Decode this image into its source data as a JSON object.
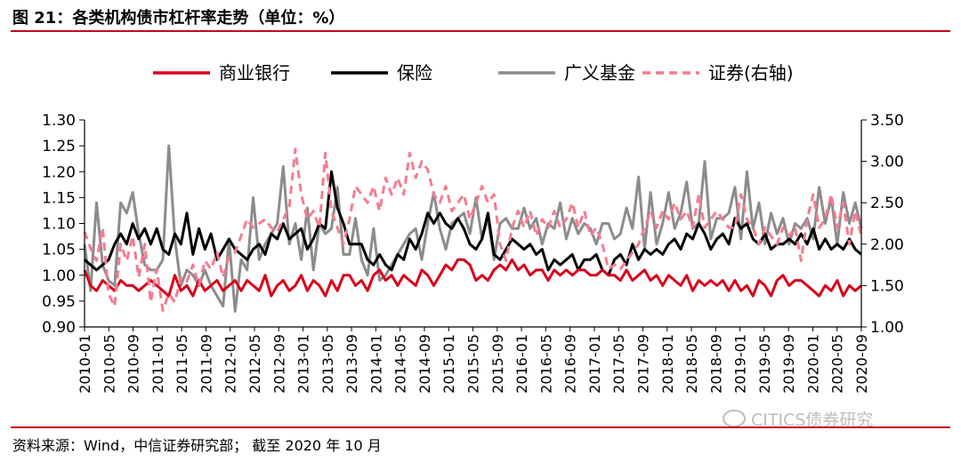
{
  "figure": {
    "title": "图 21：各类机构债市杠杆率走势（单位：%）",
    "source": "资料来源：Wind，中信证券研究部； 截至 2020 年 10 月",
    "watermark": "CITICS债券研究"
  },
  "chart_data": {
    "type": "line",
    "legend_position": "top",
    "grid": false,
    "y_left": {
      "ylim": [
        0.9,
        1.3
      ],
      "ticks": [
        "0.90",
        "0.95",
        "1.00",
        "1.05",
        "1.10",
        "1.15",
        "1.20",
        "1.25",
        "1.30"
      ]
    },
    "y_right": {
      "ylim": [
        1.0,
        3.5
      ],
      "ticks": [
        "1.00",
        "1.50",
        "2.00",
        "2.50",
        "3.00",
        "3.50"
      ]
    },
    "x_tick_labels": [
      "2010-01",
      "2010-05",
      "2010-09",
      "2011-01",
      "2011-05",
      "2011-09",
      "2012-01",
      "2012-05",
      "2012-09",
      "2013-01",
      "2013-05",
      "2013-09",
      "2014-01",
      "2014-05",
      "2014-09",
      "2015-01",
      "2015-05",
      "2015-09",
      "2016-01",
      "2016-05",
      "2016-09",
      "2017-01",
      "2017-05",
      "2017-09",
      "2018-01",
      "2018-05",
      "2018-09",
      "2019-01",
      "2019-05",
      "2019-09",
      "2020-01",
      "2020-05",
      "2020-09"
    ],
    "n_points": 130,
    "series": [
      {
        "name": "商业银行",
        "axis": "left",
        "color": "#d9001b",
        "dash": "solid",
        "values": [
          1.01,
          0.98,
          0.97,
          0.99,
          0.98,
          0.97,
          0.99,
          0.98,
          0.98,
          0.97,
          0.98,
          0.99,
          0.98,
          0.97,
          0.96,
          1.0,
          0.97,
          0.98,
          0.96,
          0.99,
          0.97,
          0.98,
          0.99,
          0.97,
          0.98,
          0.99,
          0.97,
          0.99,
          0.98,
          0.97,
          1.0,
          0.96,
          0.98,
          0.99,
          0.97,
          0.98,
          1.0,
          0.97,
          0.99,
          0.98,
          0.96,
          0.99,
          0.97,
          1.0,
          1.0,
          0.98,
          0.99,
          0.97,
          1.0,
          1.01,
          0.99,
          1.0,
          0.98,
          1.0,
          0.99,
          0.98,
          1.01,
          1.0,
          0.98,
          1.0,
          1.02,
          1.01,
          1.03,
          1.03,
          1.02,
          0.99,
          1.0,
          0.99,
          1.01,
          1.02,
          1.01,
          1.03,
          1.01,
          1.02,
          1.0,
          1.01,
          1.01,
          0.99,
          1.01,
          1.0,
          1.01,
          1.0,
          1.01,
          1.01,
          1.0,
          1.0,
          1.01,
          1.0,
          1.0,
          0.99,
          1.01,
          0.99,
          1.0,
          1.01,
          0.99,
          1.0,
          0.98,
          1.0,
          0.99,
          0.98,
          1.0,
          0.97,
          0.99,
          0.98,
          0.99,
          0.98,
          0.99,
          0.97,
          0.99,
          0.97,
          0.98,
          0.96,
          0.99,
          0.98,
          0.96,
          0.99,
          1.0,
          0.98,
          0.99,
          0.99,
          0.98,
          0.97,
          0.96,
          0.98,
          0.97,
          0.99,
          0.96,
          0.98,
          0.97,
          0.98
        ]
      },
      {
        "name": "保险",
        "axis": "left",
        "color": "#000000",
        "dash": "solid",
        "values": [
          1.03,
          1.02,
          1.01,
          1.02,
          1.03,
          1.06,
          1.08,
          1.06,
          1.1,
          1.07,
          1.09,
          1.06,
          1.09,
          1.05,
          1.04,
          1.08,
          1.06,
          1.12,
          1.04,
          1.09,
          1.05,
          1.08,
          1.03,
          1.05,
          1.07,
          1.05,
          1.04,
          1.03,
          1.05,
          1.06,
          1.04,
          1.08,
          1.07,
          1.1,
          1.07,
          1.08,
          1.09,
          1.05,
          1.07,
          1.1,
          1.09,
          1.2,
          1.13,
          1.1,
          1.06,
          1.06,
          1.06,
          1.03,
          1.02,
          1.04,
          1.02,
          1.01,
          1.04,
          1.03,
          1.07,
          1.05,
          1.08,
          1.12,
          1.1,
          1.12,
          1.1,
          1.09,
          1.11,
          1.09,
          1.06,
          1.05,
          1.07,
          1.12,
          1.04,
          1.03,
          1.05,
          1.07,
          1.06,
          1.05,
          1.06,
          1.04,
          1.05,
          1.01,
          1.03,
          1.02,
          1.03,
          1.04,
          1.01,
          1.03,
          1.03,
          1.04,
          1.01,
          1.0,
          1.03,
          1.04,
          1.02,
          1.06,
          1.03,
          1.05,
          1.04,
          1.05,
          1.04,
          1.06,
          1.07,
          1.05,
          1.08,
          1.07,
          1.1,
          1.08,
          1.05,
          1.07,
          1.08,
          1.06,
          1.11,
          1.09,
          1.1,
          1.07,
          1.06,
          1.08,
          1.05,
          1.06,
          1.06,
          1.07,
          1.06,
          1.08,
          1.06,
          1.09,
          1.05,
          1.07,
          1.05,
          1.06,
          1.05,
          1.07,
          1.05,
          1.04
        ]
      },
      {
        "name": "广义基金",
        "axis": "left",
        "color": "#8c8c8c",
        "dash": "solid",
        "values": [
          1.06,
          0.97,
          1.14,
          1.02,
          0.99,
          0.98,
          1.14,
          1.12,
          1.16,
          1.08,
          1.02,
          1.01,
          1.01,
          1.03,
          1.25,
          1.07,
          0.98,
          1.01,
          1.0,
          0.98,
          1.01,
          0.98,
          0.96,
          0.94,
          1.07,
          0.93,
          1.03,
          1.01,
          1.15,
          1.03,
          1.06,
          1.08,
          1.1,
          1.21,
          1.06,
          1.1,
          1.03,
          1.13,
          1.01,
          1.1,
          1.08,
          1.09,
          1.17,
          1.04,
          1.04,
          1.11,
          1.03,
          1.0,
          1.09,
          0.99,
          1.0,
          1.02,
          1.04,
          1.06,
          1.08,
          1.09,
          1.03,
          1.1,
          1.16,
          1.09,
          1.05,
          1.1,
          1.11,
          1.12,
          1.08,
          1.15,
          1.07,
          1.11,
          1.03,
          1.1,
          1.11,
          1.09,
          1.09,
          1.13,
          1.09,
          1.11,
          1.06,
          1.1,
          1.09,
          1.14,
          1.07,
          1.11,
          1.08,
          1.1,
          1.09,
          1.06,
          1.1,
          1.1,
          1.07,
          1.08,
          1.13,
          1.09,
          1.19,
          1.05,
          1.16,
          1.06,
          1.1,
          1.16,
          1.09,
          1.12,
          1.18,
          1.09,
          1.1,
          1.22,
          1.07,
          1.11,
          1.11,
          1.12,
          1.17,
          1.07,
          1.2,
          1.09,
          1.14,
          1.06,
          1.12,
          1.08,
          1.11,
          1.06,
          1.1,
          1.09,
          1.11,
          1.07,
          1.17,
          1.1,
          1.15,
          1.06,
          1.16,
          1.1,
          1.14,
          1.09
        ]
      },
      {
        "name": "证券(右轴)",
        "axis": "right",
        "color": "#f47c8f",
        "dash": "dashed",
        "values": [
          2.15,
          1.95,
          1.8,
          2.2,
          1.4,
          1.25,
          2.0,
          1.8,
          2.1,
          1.6,
          2.0,
          1.3,
          1.7,
          1.2,
          1.4,
          1.3,
          1.6,
          1.55,
          1.75,
          1.5,
          1.8,
          1.7,
          1.9,
          1.6,
          1.85,
          1.9,
          2.1,
          2.3,
          2.2,
          2.25,
          2.3,
          2.2,
          2.15,
          2.3,
          2.45,
          3.15,
          2.6,
          2.3,
          2.4,
          2.2,
          3.1,
          2.4,
          2.2,
          2.0,
          2.3,
          2.7,
          2.6,
          2.5,
          2.7,
          2.4,
          2.8,
          2.6,
          2.8,
          2.6,
          3.1,
          2.8,
          3.0,
          2.9,
          2.6,
          2.5,
          2.7,
          2.4,
          2.5,
          2.6,
          2.3,
          2.5,
          2.7,
          2.5,
          2.6,
          2.0,
          1.8,
          2.2,
          2.4,
          2.2,
          2.4,
          2.1,
          2.3,
          2.2,
          2.4,
          2.2,
          2.3,
          2.5,
          2.2,
          2.4,
          2.1,
          2.2,
          2.0,
          1.7,
          1.75,
          1.7,
          1.8,
          1.9,
          2.0,
          2.2,
          2.4,
          2.2,
          2.4,
          2.3,
          2.5,
          2.3,
          2.4,
          2.2,
          2.6,
          2.2,
          2.3,
          2.4,
          2.3,
          2.2,
          2.2,
          2.6,
          2.3,
          2.2,
          2.0,
          2.2,
          2.1,
          2.0,
          2.2,
          2.1,
          2.2,
          1.8,
          2.3,
          2.6,
          2.2,
          2.3,
          2.6,
          2.2,
          2.5,
          2.0,
          2.4,
          2.1
        ]
      }
    ]
  }
}
